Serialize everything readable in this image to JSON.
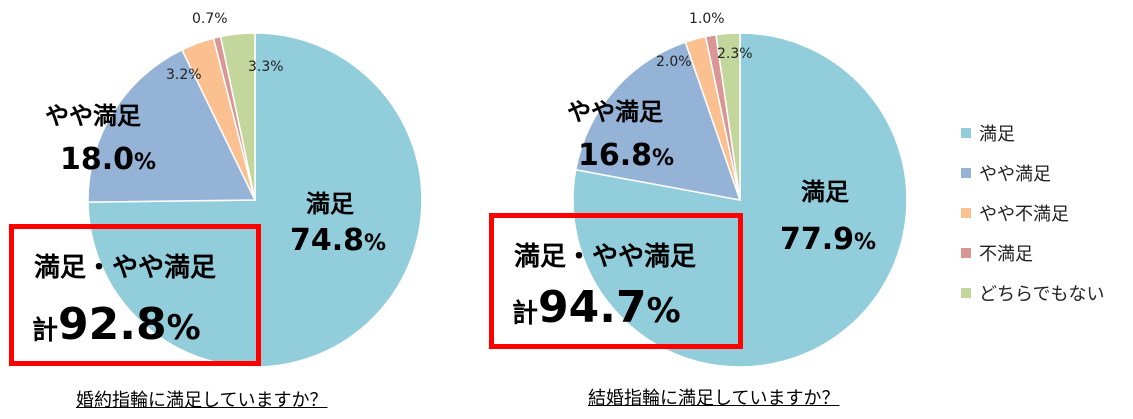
{
  "chart_data": [
    {
      "type": "pie",
      "title": "婚約指輪に満足していますか？",
      "categories": [
        "満足",
        "やや満足",
        "やや不満足",
        "不満足",
        "どちらでもない"
      ],
      "values": [
        74.8,
        18.0,
        3.2,
        0.7,
        3.3
      ],
      "labels": [
        "74.8",
        "18.0",
        "3.2%",
        "0.7%",
        "3.3%"
      ],
      "highlight": {
        "line1": "満足・やや満足",
        "prefix": "計",
        "value": "92.8",
        "unit": "%"
      }
    },
    {
      "type": "pie",
      "title": "結婚指輪に満足していますか？",
      "categories": [
        "満足",
        "やや満足",
        "やや不満足",
        "不満足",
        "どちらでもない"
      ],
      "values": [
        77.9,
        16.8,
        2.0,
        1.0,
        2.3
      ],
      "labels": [
        "77.9",
        "16.8",
        "2.0%",
        "1.0%",
        "2.3%"
      ],
      "highlight": {
        "line1": "満足・やや満足",
        "prefix": "計",
        "value": "94.7",
        "unit": "%"
      }
    }
  ],
  "legend": {
    "position": "right",
    "items": [
      {
        "label": "満足",
        "color": "#92CDDC"
      },
      {
        "label": "やや満足",
        "color": "#95B3D7"
      },
      {
        "label": "やや不満足",
        "color": "#FAC090"
      },
      {
        "label": "不満足",
        "color": "#D99694"
      },
      {
        "label": "どちらでもない",
        "color": "#C3D69B"
      }
    ]
  },
  "unit": "%"
}
